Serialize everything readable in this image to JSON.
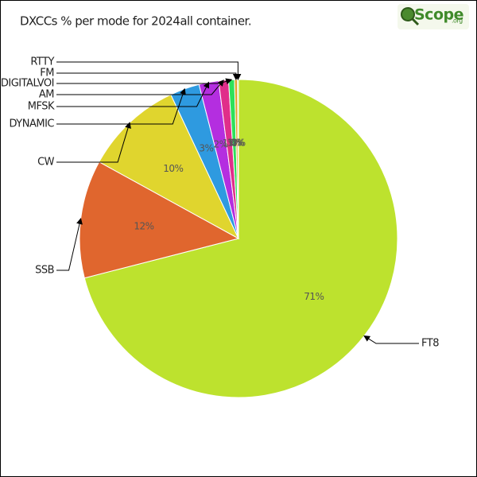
{
  "logo": {
    "text": "Scope",
    "suffix": ".org"
  },
  "chart_data": {
    "type": "pie",
    "title": "DXCCs % per mode for 2024all container.",
    "categories": [
      "FT8",
      "SSB",
      "CW",
      "DYNAMIC",
      "MFSK",
      "AM",
      "DIGITALVOI",
      "FM",
      "RTTY"
    ],
    "values": [
      71,
      12,
      10,
      3,
      2,
      1,
      0.6,
      0.3,
      0.1
    ],
    "value_labels": [
      "71%",
      "12%",
      "10%",
      "3%",
      "2%",
      "1%",
      "1%",
      "0%",
      "0%"
    ],
    "colors": [
      "#bde22e",
      "#e0662e",
      "#e0d52e",
      "#2e9ae0",
      "#b42ee0",
      "#e02e8a",
      "#2ee05a",
      "#e0a32e",
      "#a8e02e"
    ],
    "direction": "clockwise",
    "start": "top"
  }
}
